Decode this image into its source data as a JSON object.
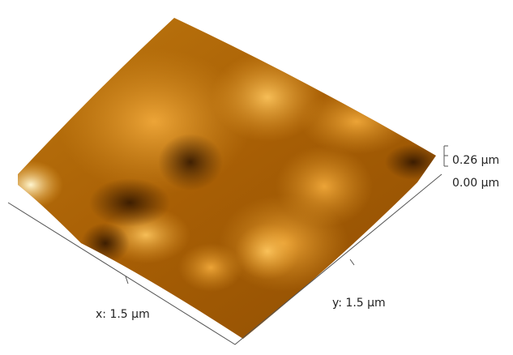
{
  "labels": {
    "x_axis": "x: 1.5 µm",
    "y_axis": "y: 1.5 µm",
    "z_max": "0.26 µm",
    "z_min": "0.00 µm"
  }
}
